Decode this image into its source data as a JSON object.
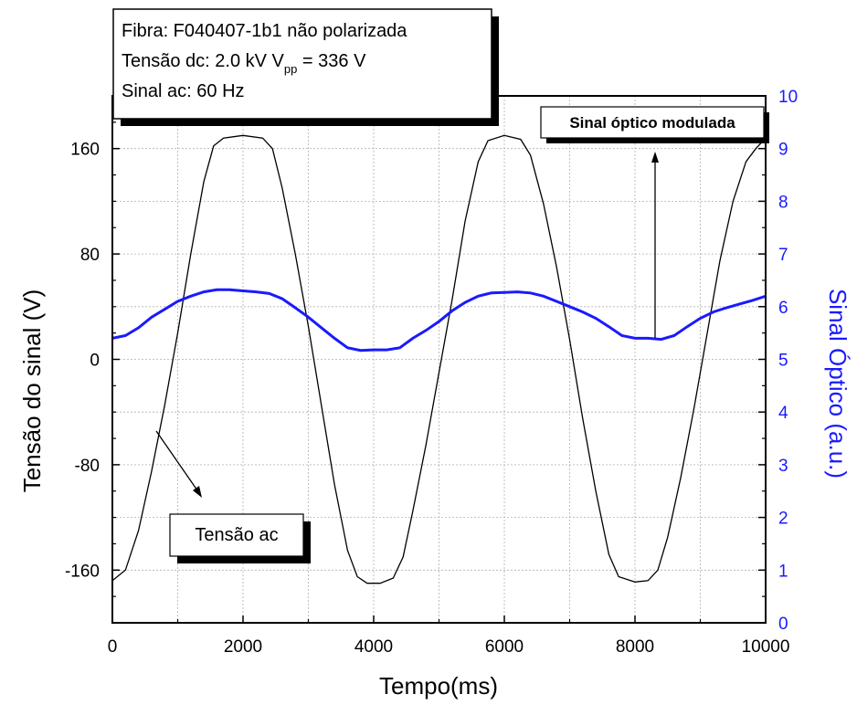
{
  "info_box": {
    "line1": "Fibra: F040407-1b1 não polarizada",
    "line2_prefix": "Tensão dc: 2.0 kV   V",
    "line2_sub": "pp",
    "line2_suffix": " = 336 V",
    "line3": "Sinal ac: 60 Hz"
  },
  "annotations": {
    "optical": "Sinal óptico modulada",
    "voltage": "Tensão ac"
  },
  "colors": {
    "voltage_series": "#000000",
    "optical_series": "#1a1aff",
    "right_axis": "#1a1aff",
    "grid": "#b0b0b0"
  },
  "chart_data": {
    "type": "line",
    "xlabel": "Tempo(ms)",
    "ylabel": "Tensão do sinal (V)",
    "y2label": "Sinal Óptico (a.u.)",
    "xlim": [
      0,
      10000
    ],
    "ylim": [
      -200,
      200
    ],
    "y2lim": [
      0,
      10
    ],
    "x_ticks": [
      0,
      2000,
      4000,
      6000,
      8000,
      10000
    ],
    "y_ticks": [
      -160,
      -80,
      0,
      80,
      160
    ],
    "y2_ticks": [
      0,
      1,
      2,
      3,
      4,
      5,
      6,
      7,
      8,
      9,
      10
    ],
    "grid": true,
    "series": [
      {
        "name": "Tensão ac",
        "axis": "left",
        "points": [
          [
            0,
            -168
          ],
          [
            200,
            -160
          ],
          [
            400,
            -130
          ],
          [
            600,
            -85
          ],
          [
            800,
            -35
          ],
          [
            1000,
            20
          ],
          [
            1200,
            80
          ],
          [
            1400,
            135
          ],
          [
            1550,
            162
          ],
          [
            1700,
            168
          ],
          [
            2000,
            170
          ],
          [
            2300,
            168
          ],
          [
            2450,
            160
          ],
          [
            2600,
            130
          ],
          [
            2800,
            80
          ],
          [
            3000,
            25
          ],
          [
            3200,
            -35
          ],
          [
            3400,
            -95
          ],
          [
            3600,
            -145
          ],
          [
            3750,
            -165
          ],
          [
            3900,
            -170
          ],
          [
            4100,
            -170
          ],
          [
            4300,
            -166
          ],
          [
            4450,
            -150
          ],
          [
            4600,
            -115
          ],
          [
            4800,
            -65
          ],
          [
            5000,
            -10
          ],
          [
            5200,
            45
          ],
          [
            5400,
            105
          ],
          [
            5600,
            150
          ],
          [
            5750,
            166
          ],
          [
            6000,
            170
          ],
          [
            6250,
            167
          ],
          [
            6400,
            155
          ],
          [
            6600,
            118
          ],
          [
            6800,
            70
          ],
          [
            7000,
            15
          ],
          [
            7200,
            -45
          ],
          [
            7400,
            -100
          ],
          [
            7600,
            -148
          ],
          [
            7750,
            -165
          ],
          [
            8000,
            -169
          ],
          [
            8200,
            -168
          ],
          [
            8350,
            -160
          ],
          [
            8500,
            -135
          ],
          [
            8700,
            -90
          ],
          [
            8900,
            -38
          ],
          [
            9100,
            18
          ],
          [
            9300,
            75
          ],
          [
            9500,
            120
          ],
          [
            9700,
            150
          ],
          [
            9850,
            160
          ],
          [
            10000,
            168
          ]
        ]
      },
      {
        "name": "Sinal óptico modulada",
        "axis": "right",
        "points": [
          [
            0,
            5.4
          ],
          [
            200,
            5.45
          ],
          [
            400,
            5.6
          ],
          [
            600,
            5.8
          ],
          [
            800,
            5.95
          ],
          [
            1000,
            6.1
          ],
          [
            1200,
            6.2
          ],
          [
            1400,
            6.28
          ],
          [
            1600,
            6.32
          ],
          [
            1800,
            6.32
          ],
          [
            2000,
            6.3
          ],
          [
            2200,
            6.28
          ],
          [
            2400,
            6.25
          ],
          [
            2600,
            6.15
          ],
          [
            2800,
            5.98
          ],
          [
            3000,
            5.8
          ],
          [
            3200,
            5.6
          ],
          [
            3400,
            5.4
          ],
          [
            3600,
            5.22
          ],
          [
            3800,
            5.17
          ],
          [
            4000,
            5.18
          ],
          [
            4200,
            5.18
          ],
          [
            4400,
            5.22
          ],
          [
            4600,
            5.4
          ],
          [
            4800,
            5.55
          ],
          [
            5000,
            5.72
          ],
          [
            5200,
            5.92
          ],
          [
            5400,
            6.08
          ],
          [
            5600,
            6.2
          ],
          [
            5800,
            6.26
          ],
          [
            6000,
            6.27
          ],
          [
            6200,
            6.28
          ],
          [
            6400,
            6.26
          ],
          [
            6600,
            6.2
          ],
          [
            6800,
            6.1
          ],
          [
            7000,
            6.0
          ],
          [
            7200,
            5.9
          ],
          [
            7400,
            5.78
          ],
          [
            7600,
            5.62
          ],
          [
            7800,
            5.45
          ],
          [
            8000,
            5.4
          ],
          [
            8200,
            5.4
          ],
          [
            8400,
            5.38
          ],
          [
            8600,
            5.45
          ],
          [
            8800,
            5.62
          ],
          [
            9000,
            5.78
          ],
          [
            9200,
            5.9
          ],
          [
            9400,
            5.98
          ],
          [
            9600,
            6.05
          ],
          [
            9800,
            6.12
          ],
          [
            10000,
            6.2
          ]
        ]
      }
    ]
  }
}
